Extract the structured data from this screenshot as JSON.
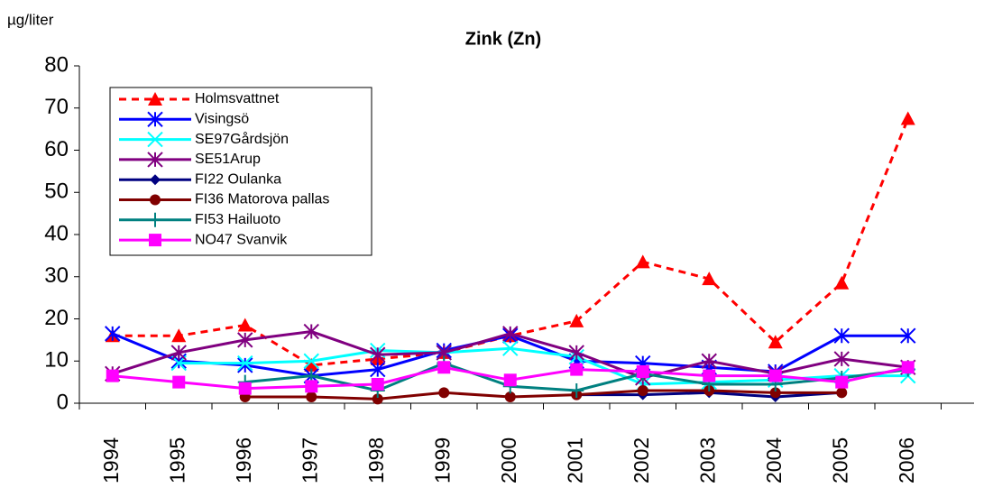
{
  "chart_data": {
    "type": "line",
    "title": "Zink (Zn)",
    "y_label": "µg/liter",
    "categories": [
      "1994",
      "1995",
      "1996",
      "1997",
      "1998",
      "1999",
      "2000",
      "2001",
      "2002",
      "2003",
      "2004",
      "2005",
      "2006"
    ],
    "ylim": [
      0,
      80
    ],
    "yticks": [
      0,
      10,
      20,
      30,
      40,
      50,
      60,
      70,
      80
    ],
    "series": [
      {
        "name": "Holmsvattnet",
        "color": "#ff0000",
        "marker": "triangle",
        "dash": true,
        "values": [
          16,
          16,
          18.5,
          9,
          10.5,
          12,
          16,
          19.5,
          33.5,
          29.5,
          14.5,
          28.5,
          67.5
        ]
      },
      {
        "name": "Visingsö",
        "color": "#0000ff",
        "marker": "asterisk",
        "values": [
          16.5,
          10,
          9,
          6.5,
          8,
          12.5,
          16,
          10,
          9.5,
          8.5,
          7.5,
          16,
          16
        ]
      },
      {
        "name": "SE97Gårdsjön",
        "color": "#00ffff",
        "marker": "x",
        "values": [
          null,
          9.5,
          9.5,
          10,
          12.5,
          12,
          13,
          11,
          4.5,
          5,
          5.5,
          6.5,
          6.5
        ]
      },
      {
        "name": "SE51Arup",
        "color": "#800080",
        "marker": "asterisk",
        "values": [
          7,
          12,
          15,
          17,
          11.5,
          12,
          16.5,
          12,
          6,
          10,
          7,
          10.5,
          8.5
        ]
      },
      {
        "name": "FI22 Oulanka",
        "color": "#000080",
        "marker": "diamond",
        "values": [
          null,
          null,
          null,
          null,
          null,
          null,
          null,
          2,
          2,
          2.5,
          1.5,
          2.5,
          null
        ]
      },
      {
        "name": "FI36 Matorova pallas",
        "color": "#800000",
        "marker": "circle",
        "values": [
          null,
          null,
          1.5,
          1.5,
          1,
          2.5,
          1.5,
          2,
          3,
          3,
          2.5,
          2.5,
          null
        ]
      },
      {
        "name": "FI53 Hailuoto",
        "color": "#008080",
        "marker": "plus",
        "values": [
          null,
          null,
          5,
          6.5,
          3,
          9.5,
          4,
          3,
          7,
          4.5,
          4.5,
          6,
          8
        ]
      },
      {
        "name": "NO47 Svanvik",
        "color": "#ff00ff",
        "marker": "square",
        "values": [
          6.5,
          5,
          3.5,
          4,
          4.5,
          8.5,
          5.5,
          8,
          7.5,
          6.5,
          6.5,
          5,
          8.5
        ]
      }
    ]
  }
}
